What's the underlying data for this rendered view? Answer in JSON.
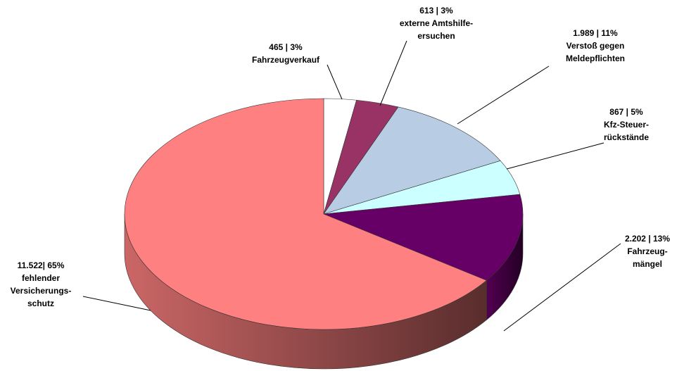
{
  "chart_data": {
    "type": "pie3d",
    "categories": [
      [
        "Fahrzeugverkauf"
      ],
      [
        "externe Amtshilfe-",
        "ersuchen"
      ],
      [
        "Verstoß gegen",
        "Meldepflichten"
      ],
      [
        "Kfz-Steuer-",
        "rückstände"
      ],
      [
        "Fahrzeug-",
        "mängel"
      ],
      [
        "fehlender",
        "Versicherungs-",
        "schutz"
      ]
    ],
    "values": [
      465,
      613,
      1989,
      867,
      2202,
      11522
    ],
    "value_labels": [
      "465 | 3%",
      "613 | 3%",
      "1.989 | 11%",
      "867 | 5%",
      "2.202 | 13%",
      "11.522| 65%"
    ],
    "colors": [
      "#ffffff",
      "#993366",
      "#b8cce4",
      "#ccffff",
      "#660066",
      "#ff8080"
    ]
  }
}
